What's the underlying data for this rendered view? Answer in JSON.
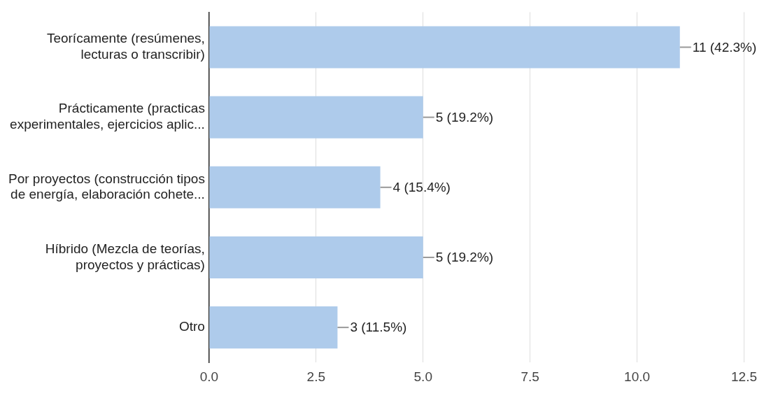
{
  "chart_data": {
    "type": "bar",
    "orientation": "horizontal",
    "categories": [
      "Teorícamente (resúmenes, lecturas o transcribir)",
      "Prácticamente (practicas experimentales, ejercicios aplic...",
      "Por proyectos (construcción tipos de energía, elaboración cohete...",
      "Híbrido (Mezcla de teorías, proyectos y prácticas)",
      "Otro"
    ],
    "values": [
      11,
      5,
      4,
      5,
      3
    ],
    "value_labels": [
      "11 (42.3%)",
      "5 (19.2%)",
      "4 (15.4%)",
      "5 (19.2%)",
      "3 (11.5%)"
    ],
    "color": "#aecbeb",
    "xlim": [
      0,
      12.5
    ],
    "xticks": [
      {
        "value": 0,
        "label": "0.0"
      },
      {
        "value": 2.5,
        "label": "2.5"
      },
      {
        "value": 5,
        "label": "5.0"
      },
      {
        "value": 7.5,
        "label": "7.5"
      },
      {
        "value": 10,
        "label": "10.0"
      },
      {
        "value": 12.5,
        "label": "12.5"
      }
    ],
    "grid": "x"
  }
}
